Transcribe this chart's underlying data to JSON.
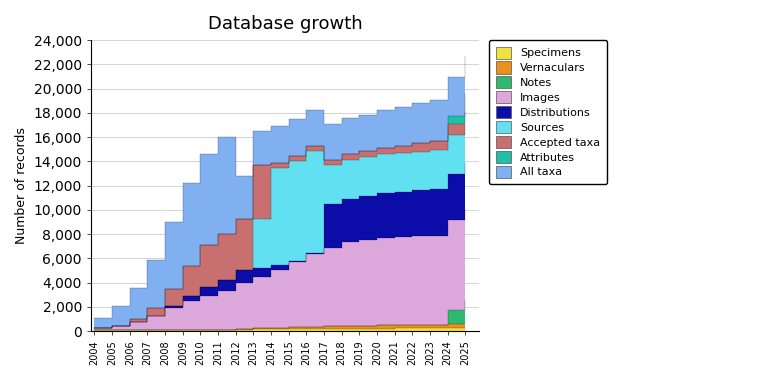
{
  "title": "Database growth",
  "ylabel": "Number of records",
  "ylim": [
    0,
    24000
  ],
  "yticks": [
    0,
    2000,
    4000,
    6000,
    8000,
    10000,
    12000,
    14000,
    16000,
    18000,
    20000,
    22000,
    24000
  ],
  "layers": [
    {
      "name": "Specimens",
      "color": "#f0e040",
      "years": [
        2004,
        2005,
        2006,
        2007,
        2008,
        2009,
        2010,
        2011,
        2012,
        2013,
        2014,
        2015,
        2016,
        2017,
        2018,
        2019,
        2020,
        2021,
        2022,
        2023,
        2024,
        2025
      ],
      "vals": [
        50,
        60,
        70,
        80,
        90,
        100,
        110,
        120,
        130,
        140,
        150,
        160,
        170,
        180,
        190,
        200,
        210,
        220,
        230,
        240,
        250,
        270
      ]
    },
    {
      "name": "Vernaculars",
      "color": "#e89020",
      "years": [
        2004,
        2005,
        2006,
        2007,
        2008,
        2009,
        2010,
        2011,
        2012,
        2013,
        2014,
        2015,
        2016,
        2017,
        2018,
        2019,
        2020,
        2021,
        2022,
        2023,
        2024,
        2025
      ],
      "vals": [
        0,
        0,
        0,
        0,
        0,
        0,
        0,
        0,
        50,
        100,
        130,
        160,
        190,
        210,
        230,
        250,
        260,
        270,
        280,
        290,
        300,
        310
      ]
    },
    {
      "name": "Notes",
      "color": "#30b870",
      "years": [
        2004,
        2005,
        2006,
        2007,
        2008,
        2009,
        2010,
        2011,
        2012,
        2013,
        2014,
        2015,
        2016,
        2017,
        2018,
        2019,
        2020,
        2021,
        2022,
        2023,
        2024,
        2025
      ],
      "vals": [
        0,
        0,
        0,
        0,
        0,
        0,
        0,
        0,
        0,
        0,
        0,
        0,
        0,
        0,
        0,
        0,
        0,
        0,
        0,
        0,
        1200,
        2000
      ]
    },
    {
      "name": "Images",
      "color": "#dca8dc",
      "years": [
        2004,
        2005,
        2006,
        2007,
        2008,
        2009,
        2010,
        2011,
        2012,
        2013,
        2014,
        2015,
        2016,
        2017,
        2018,
        2019,
        2020,
        2021,
        2022,
        2023,
        2024,
        2025
      ],
      "vals": [
        200,
        400,
        700,
        1200,
        1800,
        2400,
        2800,
        3200,
        3800,
        4200,
        4800,
        5400,
        6000,
        6500,
        6900,
        7100,
        7200,
        7250,
        7300,
        7350,
        7380,
        7400
      ]
    },
    {
      "name": "Distributions",
      "color": "#0c0ca8",
      "years": [
        2004,
        2005,
        2006,
        2007,
        2008,
        2009,
        2010,
        2011,
        2012,
        2013,
        2014,
        2015,
        2016,
        2017,
        2018,
        2019,
        2020,
        2021,
        2022,
        2023,
        2024,
        2025
      ],
      "vals": [
        0,
        0,
        0,
        0,
        200,
        400,
        700,
        900,
        1100,
        800,
        400,
        100,
        100,
        3600,
        3600,
        3600,
        3700,
        3750,
        3800,
        3820,
        3840,
        3850
      ]
    },
    {
      "name": "Sources",
      "color": "#60e0f0",
      "years": [
        2004,
        2005,
        2006,
        2007,
        2008,
        2009,
        2010,
        2011,
        2012,
        2013,
        2014,
        2015,
        2016,
        2017,
        2018,
        2019,
        2020,
        2021,
        2022,
        2023,
        2024,
        2025
      ],
      "vals": [
        0,
        0,
        0,
        0,
        0,
        0,
        0,
        0,
        0,
        4000,
        8000,
        8200,
        8400,
        3200,
        3200,
        3200,
        3200,
        3200,
        3200,
        3200,
        3200,
        3200
      ]
    },
    {
      "name": "Accepted taxa",
      "color": "#c87070",
      "years": [
        2004,
        2005,
        2006,
        2007,
        2008,
        2009,
        2010,
        2011,
        2012,
        2013,
        2014,
        2015,
        2016,
        2017,
        2018,
        2019,
        2020,
        2021,
        2022,
        2023,
        2024,
        2025
      ],
      "vals": [
        0,
        0,
        200,
        600,
        1400,
        2500,
        3500,
        3800,
        4200,
        4500,
        400,
        400,
        400,
        400,
        450,
        500,
        550,
        600,
        700,
        800,
        900,
        1000
      ]
    },
    {
      "name": "Attributes",
      "color": "#20c0a8",
      "years": [
        2004,
        2005,
        2006,
        2007,
        2008,
        2009,
        2010,
        2011,
        2012,
        2013,
        2014,
        2015,
        2016,
        2017,
        2018,
        2019,
        2020,
        2021,
        2022,
        2023,
        2024,
        2025
      ],
      "vals": [
        0,
        0,
        0,
        0,
        0,
        0,
        0,
        0,
        0,
        0,
        0,
        0,
        0,
        0,
        0,
        0,
        0,
        0,
        0,
        0,
        700,
        1500
      ]
    },
    {
      "name": "All taxa",
      "color": "#80b0f0",
      "years": [
        2004,
        2005,
        2006,
        2007,
        2008,
        2009,
        2010,
        2011,
        2012,
        2013,
        2014,
        2015,
        2016,
        2017,
        2018,
        2019,
        2020,
        2021,
        2022,
        2023,
        2024,
        2025
      ],
      "vals": [
        800,
        1600,
        2600,
        4000,
        5500,
        6800,
        7500,
        8000,
        3500,
        2800,
        3000,
        3100,
        3000,
        3000,
        3000,
        3000,
        3100,
        3200,
        3300,
        3400,
        3200,
        3200
      ]
    }
  ],
  "xstart": 2004,
  "xend": 2025
}
